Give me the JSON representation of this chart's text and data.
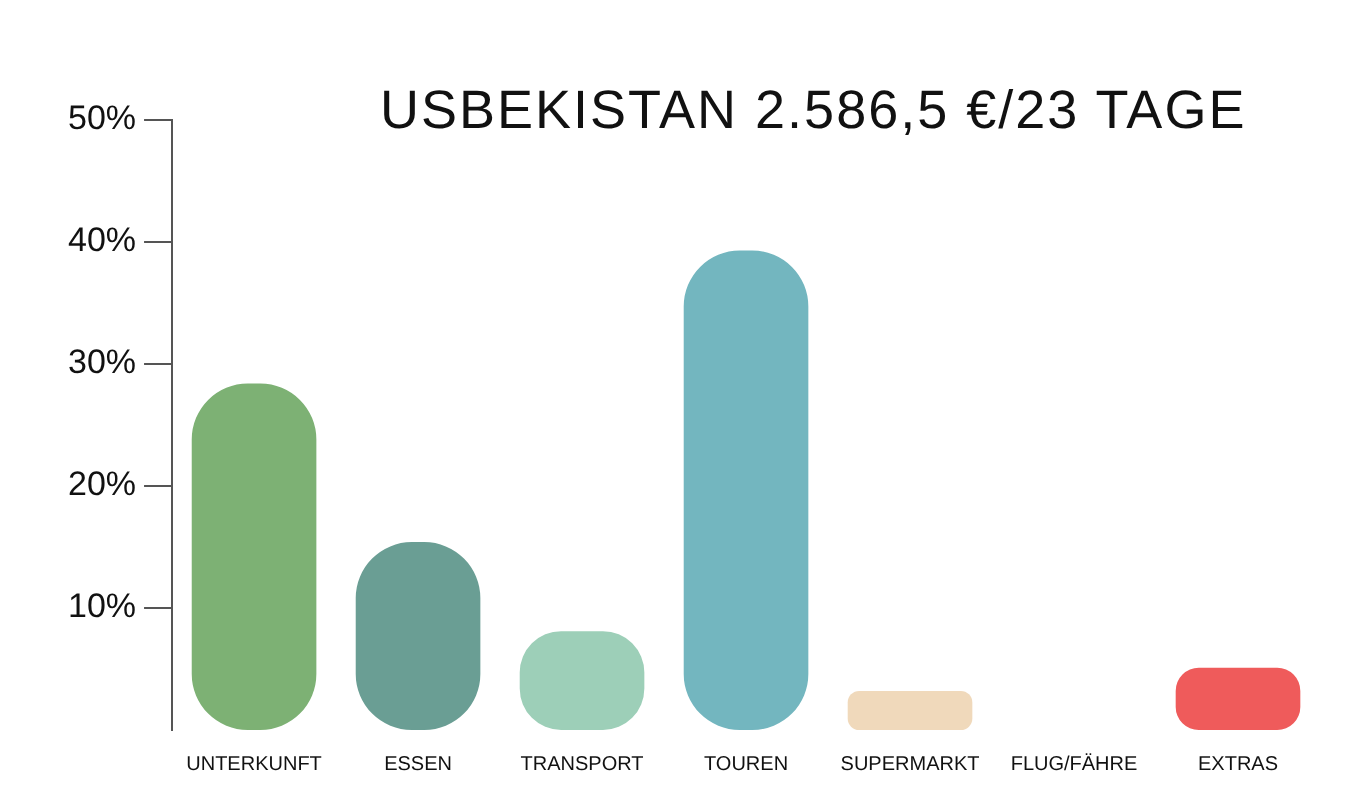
{
  "chart_data": {
    "type": "bar",
    "title": "USBEKISTAN 2.586,5 €/23 TAGE",
    "categories": [
      "UNTERKUNFT",
      "ESSEN",
      "TRANSPORT",
      "TOUREN",
      "SUPERMARKT",
      "FLUG/FÄHRE",
      "EXTRAS"
    ],
    "values": [
      28.4,
      15.4,
      8.1,
      39.3,
      3.2,
      0,
      5.1
    ],
    "colors": [
      "#7db174",
      "#6a9e94",
      "#9dcfb8",
      "#73b6bf",
      "#f0d9bb",
      "#cccccc",
      "#ef5b5b"
    ],
    "ylim": [
      0,
      50
    ],
    "yticks": [
      {
        "value": 10,
        "label": "10%"
      },
      {
        "value": 20,
        "label": "20%"
      },
      {
        "value": 30,
        "label": "30%"
      },
      {
        "value": 40,
        "label": "40%"
      },
      {
        "value": 50,
        "label": "50%"
      }
    ],
    "grid": false,
    "legend": false
  }
}
